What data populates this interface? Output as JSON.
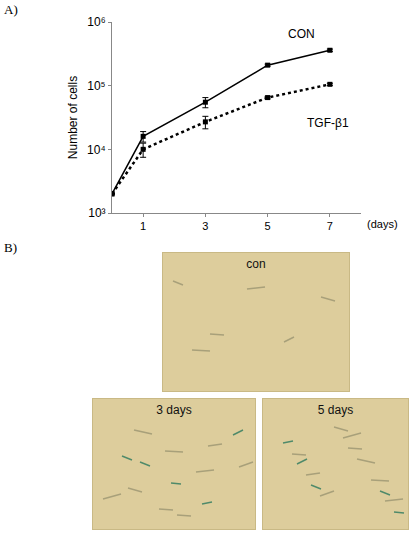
{
  "chart_data": {
    "type": "line",
    "x": [
      0,
      1,
      3,
      5,
      7
    ],
    "series": [
      {
        "name": "CON",
        "color": "#000000",
        "line_style": "solid",
        "marker": "square",
        "values": [
          2000,
          16000,
          55000,
          210000,
          360000
        ],
        "errors": [
          0,
          3000,
          10000,
          8000,
          15000
        ]
      },
      {
        "name": "TGF-β1",
        "color": "#000000",
        "line_style": "dot",
        "marker": "square",
        "values": [
          2000,
          10000,
          27000,
          65000,
          105000
        ],
        "errors": [
          0,
          2500,
          6000,
          3000,
          4000
        ]
      }
    ],
    "y_label": "Number of cells",
    "x_label": "(days)",
    "xlim": [
      0,
      8
    ],
    "xticks": [
      1,
      3,
      5,
      7
    ],
    "ylim": [
      1000,
      1000000
    ],
    "yticks": [
      {
        "value": 1000,
        "label": "10³"
      },
      {
        "value": 10000,
        "label": "10⁴"
      },
      {
        "value": 100000,
        "label": "10⁵"
      },
      {
        "value": 1000000,
        "label": "10⁶"
      }
    ],
    "log": "y",
    "grid": false
  },
  "figure": {
    "panel_labels": [
      "A)",
      "B)"
    ],
    "images": [
      {
        "label": "con"
      },
      {
        "label": "3 days"
      },
      {
        "label": "5 days"
      }
    ]
  }
}
